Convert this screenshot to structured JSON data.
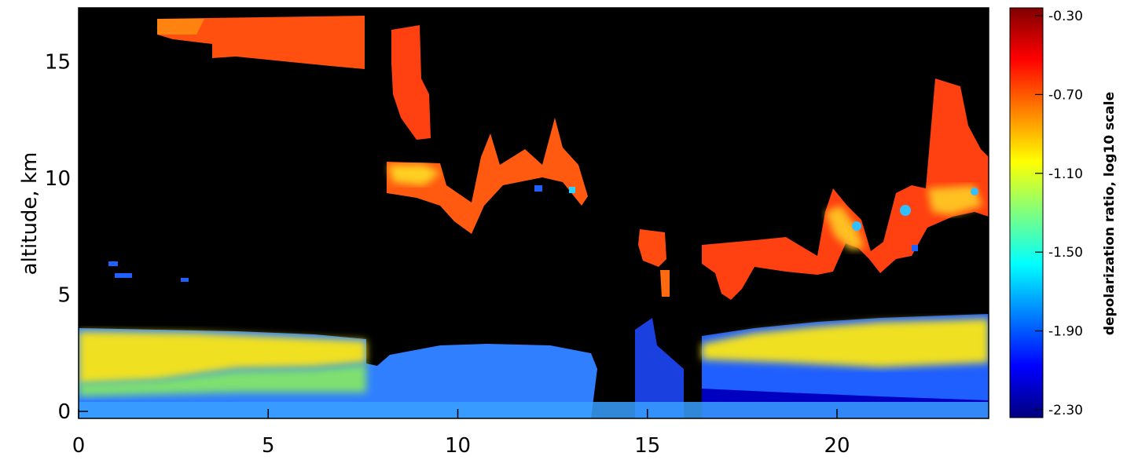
{
  "chart_data": {
    "type": "heatmap",
    "ylabel": "altitude, km",
    "xlim": [
      0,
      24
    ],
    "ylim": [
      -0.3,
      17.3
    ],
    "x_ticks": [
      {
        "value": 0,
        "label": "0"
      },
      {
        "value": 5,
        "label": "5"
      },
      {
        "value": 10,
        "label": "10"
      },
      {
        "value": 15,
        "label": "15"
      },
      {
        "value": 20,
        "label": "20"
      }
    ],
    "y_ticks": [
      {
        "value": 0,
        "label": "0"
      },
      {
        "value": 5,
        "label": "5"
      },
      {
        "value": 10,
        "label": "10"
      },
      {
        "value": 15,
        "label": "15"
      }
    ],
    "colorbar": {
      "title": "depolarization ratio, log10 scale",
      "range": [
        -2.3,
        -0.3
      ],
      "ticks": [
        {
          "value": -0.3,
          "label": "-0.30"
        },
        {
          "value": -0.7,
          "label": "-0.70"
        },
        {
          "value": -1.1,
          "label": "-1.10"
        },
        {
          "value": -1.5,
          "label": "-1.50"
        },
        {
          "value": -1.9,
          "label": "-1.90"
        },
        {
          "value": -2.3,
          "label": "-2.30"
        }
      ],
      "colormap": "jet"
    },
    "background_color": "#000000",
    "regions": [
      {
        "name": "upper cirrus layer",
        "x": [
          1.8,
          7.4
        ],
        "y": [
          14.8,
          17.0
        ],
        "value": -0.55
      },
      {
        "name": "cirrus column",
        "x": [
          8.3,
          9.3
        ],
        "y": [
          11.8,
          16.5
        ],
        "value": -0.6
      },
      {
        "name": "cirrus band",
        "x": [
          8.0,
          13.5
        ],
        "y": [
          8.0,
          12.8
        ],
        "value": -0.65
      },
      {
        "name": "mid-level cloud",
        "x": [
          15.4,
          16.0
        ],
        "y": [
          5.8,
          8.2
        ],
        "value": -0.7
      },
      {
        "name": "mid-level cloud",
        "x": [
          16.5,
          24.0
        ],
        "y": [
          5.0,
          14.3
        ],
        "value": -0.75
      },
      {
        "name": "boundary layer aerosol",
        "x": [
          0.0,
          7.5
        ],
        "y": [
          0.0,
          3.7
        ],
        "value": -1.4
      },
      {
        "name": "boundary layer aerosol",
        "x": [
          8.0,
          14.0
        ],
        "y": [
          0.0,
          3.2
        ],
        "value": -1.75
      },
      {
        "name": "boundary layer aerosol",
        "x": [
          16.5,
          24.0
        ],
        "y": [
          0.0,
          4.4
        ],
        "value": -1.35
      }
    ]
  }
}
